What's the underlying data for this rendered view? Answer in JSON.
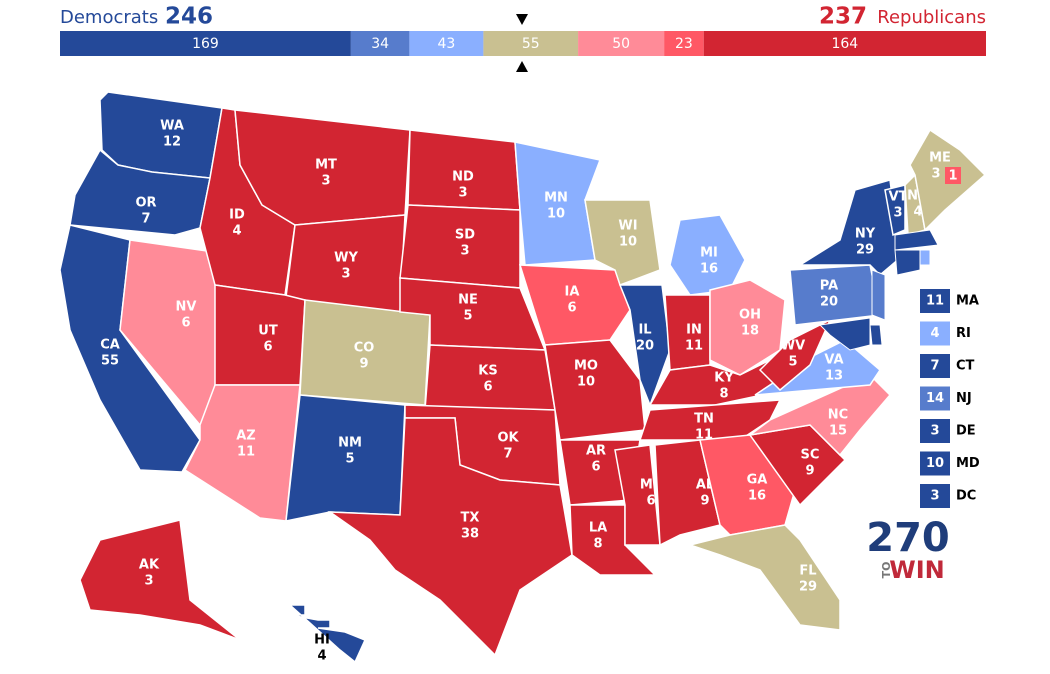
{
  "header": {
    "dem_label": "Democrats",
    "dem_total": 246,
    "rep_total": 237,
    "rep_label": "Republicans"
  },
  "bar": {
    "segments": [
      {
        "value": 169,
        "color": "#244999"
      },
      {
        "value": 34,
        "color": "#577ccc"
      },
      {
        "value": 43,
        "color": "#8aafff"
      },
      {
        "value": 55,
        "color": "#c9c091"
      },
      {
        "value": 50,
        "color": "#ff8b98"
      },
      {
        "value": 23,
        "color": "#ff5865"
      },
      {
        "value": 164,
        "color": "#d22532"
      }
    ]
  },
  "map": {
    "states": [
      {
        "abbr": "WA",
        "votes": 12,
        "color": "#244999"
      },
      {
        "abbr": "OR",
        "votes": 7,
        "color": "#244999"
      },
      {
        "abbr": "CA",
        "votes": 55,
        "color": "#244999"
      },
      {
        "abbr": "NV",
        "votes": 6,
        "color": "#ff8b98"
      },
      {
        "abbr": "ID",
        "votes": 4,
        "color": "#d22532"
      },
      {
        "abbr": "MT",
        "votes": 3,
        "color": "#d22532"
      },
      {
        "abbr": "WY",
        "votes": 3,
        "color": "#d22532"
      },
      {
        "abbr": "UT",
        "votes": 6,
        "color": "#d22532"
      },
      {
        "abbr": "AZ",
        "votes": 11,
        "color": "#ff8b98"
      },
      {
        "abbr": "CO",
        "votes": 9,
        "color": "#c9c091"
      },
      {
        "abbr": "NM",
        "votes": 5,
        "color": "#244999"
      },
      {
        "abbr": "ND",
        "votes": 3,
        "color": "#d22532"
      },
      {
        "abbr": "SD",
        "votes": 3,
        "color": "#d22532"
      },
      {
        "abbr": "NE",
        "votes": 5,
        "color": "#d22532"
      },
      {
        "abbr": "KS",
        "votes": 6,
        "color": "#d22532"
      },
      {
        "abbr": "OK",
        "votes": 7,
        "color": "#d22532"
      },
      {
        "abbr": "TX",
        "votes": 38,
        "color": "#d22532"
      },
      {
        "abbr": "MN",
        "votes": 10,
        "color": "#8aafff"
      },
      {
        "abbr": "IA",
        "votes": 6,
        "color": "#ff5865"
      },
      {
        "abbr": "MO",
        "votes": 10,
        "color": "#d22532"
      },
      {
        "abbr": "AR",
        "votes": 6,
        "color": "#d22532"
      },
      {
        "abbr": "LA",
        "votes": 8,
        "color": "#d22532"
      },
      {
        "abbr": "WI",
        "votes": 10,
        "color": "#c9c091"
      },
      {
        "abbr": "IL",
        "votes": 20,
        "color": "#244999"
      },
      {
        "abbr": "MI",
        "votes": 16,
        "color": "#8aafff"
      },
      {
        "abbr": "IN",
        "votes": 11,
        "color": "#d22532"
      },
      {
        "abbr": "OH",
        "votes": 18,
        "color": "#ff8b98"
      },
      {
        "abbr": "KY",
        "votes": 8,
        "color": "#d22532"
      },
      {
        "abbr": "TN",
        "votes": 11,
        "color": "#d22532"
      },
      {
        "abbr": "MS",
        "votes": 6,
        "color": "#d22532"
      },
      {
        "abbr": "AL",
        "votes": 9,
        "color": "#d22532"
      },
      {
        "abbr": "GA",
        "votes": 16,
        "color": "#ff5865"
      },
      {
        "abbr": "FL",
        "votes": 29,
        "color": "#c9c091"
      },
      {
        "abbr": "SC",
        "votes": 9,
        "color": "#d22532"
      },
      {
        "abbr": "NC",
        "votes": 15,
        "color": "#ff8b98"
      },
      {
        "abbr": "VA",
        "votes": 13,
        "color": "#8aafff"
      },
      {
        "abbr": "WV",
        "votes": 5,
        "color": "#d22532"
      },
      {
        "abbr": "PA",
        "votes": 20,
        "color": "#577ccc"
      },
      {
        "abbr": "NY",
        "votes": 29,
        "color": "#244999"
      },
      {
        "abbr": "VT",
        "votes": 3,
        "color": "#244999"
      },
      {
        "abbr": "NH",
        "votes": 4,
        "color": "#c9c091"
      },
      {
        "abbr": "ME",
        "votes": 3,
        "color": "#c9c091"
      },
      {
        "abbr": "AK",
        "votes": 3,
        "color": "#d22532"
      },
      {
        "abbr": "HI",
        "votes": 4,
        "color": "#244999"
      }
    ],
    "maine_district": {
      "votes": 1,
      "color": "#ff5865"
    }
  },
  "sidebar": [
    {
      "votes": 11,
      "abbr": "MA",
      "color": "#244999"
    },
    {
      "votes": 4,
      "abbr": "RI",
      "color": "#8aafff"
    },
    {
      "votes": 7,
      "abbr": "CT",
      "color": "#244999"
    },
    {
      "votes": 14,
      "abbr": "NJ",
      "color": "#577ccc"
    },
    {
      "votes": 3,
      "abbr": "DE",
      "color": "#244999"
    },
    {
      "votes": 10,
      "abbr": "MD",
      "color": "#244999"
    },
    {
      "votes": 3,
      "abbr": "DC",
      "color": "#244999"
    }
  ],
  "logo": {
    "number": "270",
    "to": "TO",
    "win": "WIN"
  }
}
